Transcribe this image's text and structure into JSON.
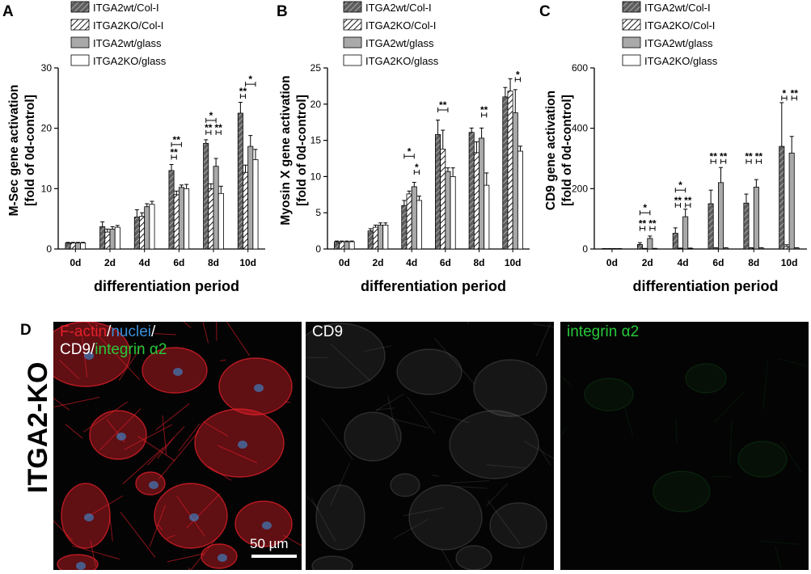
{
  "chart_data": [
    {
      "type": "bar",
      "panel": "A",
      "ylabel": "M-Sec gene activation\n[fold of 0d-control]",
      "xlabel": "differentiation period",
      "ylim": [
        0,
        30
      ],
      "yticks": [
        0,
        10,
        20,
        30
      ],
      "categories": [
        "0d",
        "2d",
        "4d",
        "6d",
        "8d",
        "10d"
      ],
      "series": [
        {
          "name": "ITGA2wt/Col-I",
          "values": [
            1,
            3.7,
            5.3,
            13,
            17.5,
            22.5
          ],
          "errors": [
            0.1,
            0.8,
            1.2,
            1.0,
            0.6,
            1.8
          ]
        },
        {
          "name": "ITGA2KO/Col-I",
          "values": [
            1,
            2.8,
            5.4,
            9,
            10,
            12.7
          ],
          "errors": [
            0.1,
            0.5,
            0.6,
            0.6,
            0.8,
            1.2
          ]
        },
        {
          "name": "ITGA2wt/glass",
          "values": [
            1,
            3.3,
            7,
            10.2,
            13.7,
            17
          ],
          "errors": [
            0.1,
            0.4,
            0.5,
            0.4,
            1.3,
            1.8
          ]
        },
        {
          "name": "ITGA2KO/glass",
          "values": [
            1,
            3.6,
            7.4,
            10,
            9.2,
            14.8
          ],
          "errors": [
            0.1,
            0.3,
            0.5,
            0.7,
            1.2,
            1.7
          ]
        }
      ],
      "significance": [
        {
          "category": "6d",
          "from": 0,
          "to": 2,
          "label": "**",
          "y": 17.3
        },
        {
          "category": "6d",
          "from": 0,
          "to": 1,
          "label": "**",
          "y": 15.2
        },
        {
          "category": "8d",
          "from": 0,
          "to": 2,
          "label": "*",
          "y": 21.3
        },
        {
          "category": "8d",
          "from": 0,
          "to": 1,
          "label": "**",
          "y": 19.3
        },
        {
          "category": "8d",
          "from": 2,
          "to": 3,
          "label": "**",
          "y": 19.3
        },
        {
          "category": "10d",
          "from": 1,
          "to": 3,
          "label": "*",
          "y": 27.3
        },
        {
          "category": "10d",
          "from": 0,
          "to": 1,
          "label": "**",
          "y": 25.3
        }
      ]
    },
    {
      "type": "bar",
      "panel": "B",
      "ylabel": "Myosin X gene activation\n[fold of 0d-control]",
      "xlabel": "differentiation period",
      "ylim": [
        0,
        25
      ],
      "yticks": [
        0,
        5,
        10,
        15,
        20,
        25
      ],
      "categories": [
        "0d",
        "2d",
        "4d",
        "6d",
        "8d",
        "10d"
      ],
      "series": [
        {
          "name": "ITGA2wt/Col-I",
          "values": [
            1,
            2.5,
            6,
            15.8,
            16.1,
            21
          ],
          "errors": [
            0.1,
            0.3,
            0.7,
            2.0,
            0.6,
            1.3
          ]
        },
        {
          "name": "ITGA2KO/Col-I",
          "values": [
            1,
            3,
            7.6,
            13.8,
            13.3,
            21.8
          ],
          "errors": [
            0.1,
            0.3,
            0.4,
            2.6,
            1.5,
            1.7
          ]
        },
        {
          "name": "ITGA2wt/glass",
          "values": [
            1,
            3.3,
            8.6,
            10.7,
            15.3,
            18.8
          ],
          "errors": [
            0.1,
            0.3,
            0.6,
            0.5,
            1.4,
            3.2
          ]
        },
        {
          "name": "ITGA2KO/glass",
          "values": [
            1,
            3.3,
            6.7,
            10,
            8.8,
            13.5
          ],
          "errors": [
            0.1,
            0.3,
            0.6,
            1.2,
            1.7,
            0.7
          ]
        }
      ],
      "significance": [
        {
          "category": "4d",
          "from": 0,
          "to": 2,
          "label": "*",
          "y": 12.8
        },
        {
          "category": "4d",
          "from": 2,
          "to": 3,
          "label": "*",
          "y": 10.6
        },
        {
          "category": "6d",
          "from": 0,
          "to": 2,
          "label": "**",
          "y": 19.2
        },
        {
          "category": "8d",
          "from": 2,
          "to": 3,
          "label": "**",
          "y": 18.5
        },
        {
          "category": "10d",
          "from": 2,
          "to": 3,
          "label": "*",
          "y": 23.4
        }
      ]
    },
    {
      "type": "bar",
      "panel": "C",
      "ylabel": "CD9 gene activation\n[fold of 0d-control]",
      "xlabel": "differentiation period",
      "ylim": [
        0,
        600
      ],
      "yticks": [
        0,
        200,
        400,
        600
      ],
      "categories": [
        "0d",
        "2d",
        "4d",
        "6d",
        "8d",
        "10d"
      ],
      "series": [
        {
          "name": "ITGA2wt/Col-I",
          "values": [
            1,
            15,
            52,
            150,
            152,
            340
          ],
          "errors": [
            0.5,
            6,
            18,
            45,
            30,
            145
          ]
        },
        {
          "name": "ITGA2KO/Col-I",
          "values": [
            1,
            1,
            2,
            3,
            3,
            8
          ],
          "errors": [
            0.5,
            1,
            1,
            1,
            1,
            6
          ]
        },
        {
          "name": "ITGA2wt/glass",
          "values": [
            1,
            35,
            107,
            220,
            205,
            318
          ],
          "errors": [
            0.5,
            8,
            25,
            50,
            25,
            55
          ]
        },
        {
          "name": "ITGA2KO/glass",
          "values": [
            1,
            1,
            2,
            3,
            3,
            3
          ],
          "errors": [
            0.5,
            1,
            1,
            1,
            1,
            1
          ]
        }
      ],
      "significance": [
        {
          "category": "2d",
          "from": 0,
          "to": 2,
          "label": "*",
          "y": 120
        },
        {
          "category": "2d",
          "from": 0,
          "to": 1,
          "label": "**",
          "y": 68
        },
        {
          "category": "2d",
          "from": 2,
          "to": 3,
          "label": "**",
          "y": 68
        },
        {
          "category": "4d",
          "from": 0,
          "to": 2,
          "label": "*",
          "y": 195
        },
        {
          "category": "4d",
          "from": 0,
          "to": 1,
          "label": "**",
          "y": 145
        },
        {
          "category": "4d",
          "from": 2,
          "to": 3,
          "label": "**",
          "y": 145
        },
        {
          "category": "6d",
          "from": 0,
          "to": 1,
          "label": "**",
          "y": 290
        },
        {
          "category": "6d",
          "from": 2,
          "to": 3,
          "label": "**",
          "y": 290
        },
        {
          "category": "8d",
          "from": 0,
          "to": 1,
          "label": "**",
          "y": 290
        },
        {
          "category": "8d",
          "from": 2,
          "to": 3,
          "label": "**",
          "y": 290
        },
        {
          "category": "10d",
          "from": 0,
          "to": 1,
          "label": "*",
          "y": 500
        },
        {
          "category": "10d",
          "from": 2,
          "to": 3,
          "label": "**",
          "y": 500
        }
      ]
    }
  ],
  "legend_labels": [
    "ITGA2wt/Col-I",
    "ITGA2KO/Col-I",
    "ITGA2wt/glass",
    "ITGA2KO/glass"
  ],
  "colors": {
    "wt_colI": "#555555",
    "ko_colI": "#ffffff",
    "wt_glass": "#a9a9a9",
    "ko_glass": "#ffffff",
    "red": "#e4202a",
    "blue": "#3a8fd9",
    "green": "#28c83a",
    "micro_bg": "#040404"
  },
  "panel_letters": {
    "a": "A",
    "b": "B",
    "c": "C",
    "d": "D"
  },
  "micrographs": {
    "row_label": "ITGA2-KO",
    "p1": {
      "t1": "F-actin",
      "s1": "/",
      "t2": "nuclei",
      "s2": "/",
      "t3": "CD9",
      "s3": "/",
      "t4": "integrin α2"
    },
    "p2": {
      "label": "CD9"
    },
    "p3": {
      "label": "integrin α2"
    },
    "scalebar": "50 µm"
  }
}
